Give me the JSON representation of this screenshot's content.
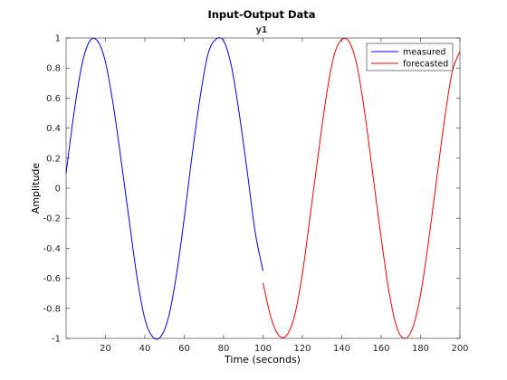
{
  "chart_data": {
    "type": "line",
    "title": "Input-Output Data",
    "subtitle": "y1",
    "xlabel": "Time (seconds)",
    "ylabel": "Amplitude",
    "xlim": [
      0,
      200
    ],
    "ylim": [
      -1,
      1
    ],
    "x_ticks": [
      20,
      40,
      60,
      80,
      100,
      120,
      140,
      160,
      180,
      200
    ],
    "y_ticks": [
      -1,
      -0.8,
      -0.6,
      -0.4,
      -0.2,
      0,
      0.2,
      0.4,
      0.6,
      0.8,
      1
    ],
    "x_tick_labels": [
      "20",
      "40",
      "60",
      "80",
      "100",
      "120",
      "140",
      "160",
      "180",
      "200"
    ],
    "y_tick_labels": [
      "-1",
      "-0.8",
      "-0.6",
      "-0.4",
      "-0.2",
      "0",
      "0.2",
      "0.4",
      "0.6",
      "0.8",
      "1"
    ],
    "grid": false,
    "box": true,
    "legend_position": "top-right",
    "series": [
      {
        "name": "measured",
        "color": "#0000ff",
        "x": [
          0,
          4,
          8,
          12,
          16,
          20,
          24,
          28,
          32,
          36,
          40,
          44,
          48,
          52,
          56,
          60,
          64,
          68,
          72,
          76,
          80,
          84,
          88,
          92,
          96,
          100
        ],
        "y": [
          0.1,
          0.5,
          0.82,
          0.98,
          0.98,
          0.84,
          0.55,
          0.18,
          -0.21,
          -0.59,
          -0.87,
          -0.99,
          -0.99,
          -0.86,
          -0.58,
          -0.2,
          0.22,
          0.6,
          0.89,
          0.99,
          0.98,
          0.81,
          0.49,
          0.11,
          -0.29,
          -0.55
        ]
      },
      {
        "name": "forecasted",
        "color": "#ff0000",
        "x": [
          100,
          104,
          108,
          112,
          116,
          120,
          124,
          128,
          132,
          136,
          140,
          144,
          148,
          152,
          156,
          160,
          164,
          168,
          172,
          176,
          180,
          184,
          188,
          192,
          196,
          200
        ],
        "y": [
          -0.63,
          -0.86,
          -0.98,
          -0.98,
          -0.85,
          -0.57,
          -0.18,
          0.22,
          0.6,
          0.88,
          0.99,
          0.97,
          0.8,
          0.47,
          0.07,
          -0.33,
          -0.69,
          -0.93,
          -1.0,
          -0.93,
          -0.71,
          -0.36,
          0.04,
          0.44,
          0.77,
          0.91
        ]
      }
    ]
  }
}
